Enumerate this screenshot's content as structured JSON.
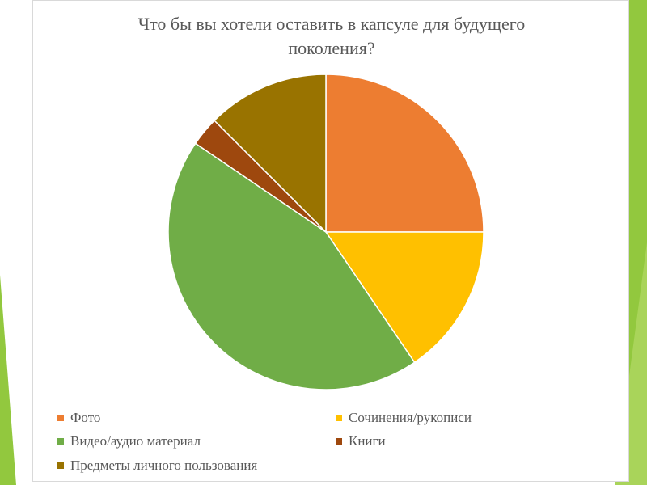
{
  "colors": {
    "slide_accent": "#92c83e",
    "frame_border": "#d9d9d9",
    "text": "#595959"
  },
  "chart_data": {
    "type": "pie",
    "title": "Что бы вы хотели оставить в капсуле для будущего поколения?",
    "title_lines": [
      "Что бы вы хотели оставить в капсуле для будущего",
      "поколения?"
    ],
    "legend_position": "bottom",
    "slices": [
      {
        "label": "Фото",
        "value": 25,
        "color": "#ed7d31"
      },
      {
        "label": "Сочинения/рукописи",
        "value": 15.5,
        "color": "#ffc000"
      },
      {
        "label": "Видео/аудио материал",
        "value": 44,
        "color": "#70ad47"
      },
      {
        "label": "Книги",
        "value": 3,
        "color": "#9e480e"
      },
      {
        "label": "Предметы личного пользования",
        "value": 12.5,
        "color": "#997300"
      }
    ]
  }
}
